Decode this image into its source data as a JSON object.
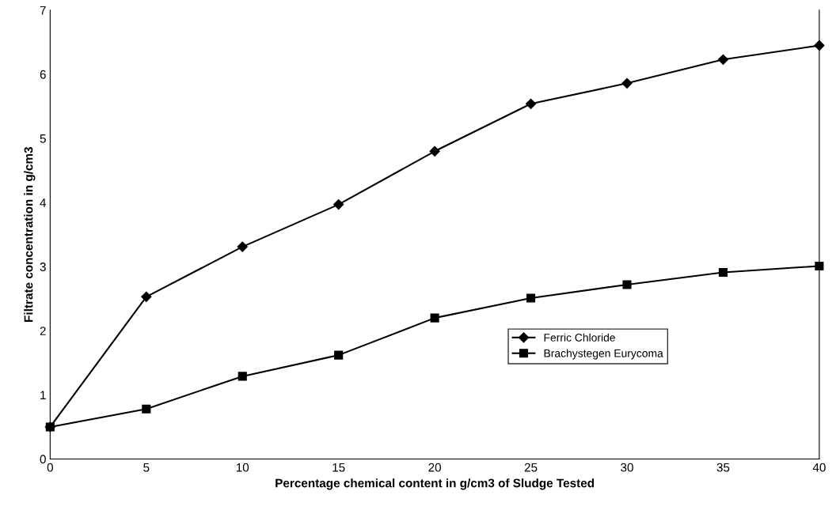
{
  "chart_data": {
    "type": "line",
    "xlabel": "Percentage chemical content in g/cm3 of Sludge Tested",
    "ylabel": "Filtrate concentration in g/cm3",
    "x": [
      0,
      5,
      10,
      15,
      20,
      25,
      30,
      35,
      40
    ],
    "series": [
      {
        "name": "Ferric Chloride",
        "color": "#000000",
        "marker": "diamond",
        "values": [
          0.5,
          2.53,
          3.31,
          3.97,
          4.8,
          5.54,
          5.86,
          6.23,
          6.45
        ]
      },
      {
        "name": "Brachystegen Eurycoma",
        "color": "#000000",
        "marker": "square",
        "values": [
          0.5,
          0.78,
          1.29,
          1.62,
          2.2,
          2.51,
          2.72,
          2.91,
          3.01
        ]
      }
    ],
    "xlim": [
      0,
      40
    ],
    "xticks": [
      0,
      5,
      10,
      15,
      20,
      25,
      30,
      35,
      40
    ],
    "ylim": [
      0,
      7
    ],
    "yticks": [
      0,
      1,
      2,
      3,
      4,
      5,
      6,
      7
    ],
    "grid": false,
    "legend": "bottom right",
    "line_style": "solid"
  }
}
